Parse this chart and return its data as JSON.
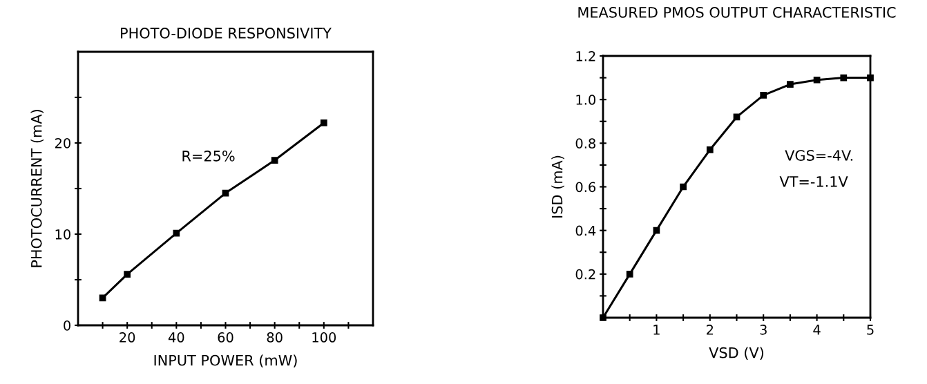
{
  "chart_data": [
    {
      "type": "line",
      "title": "PHOTO-DIODE RESPONSIVITY",
      "xlabel": "INPUT POWER (mW)",
      "ylabel": "PHOTOCURRENT (mA)",
      "x": [
        10,
        20,
        40,
        60,
        80,
        100
      ],
      "series": [
        {
          "color": "#000000",
          "values": [
            3.0,
            5.6,
            10.1,
            14.5,
            18.1,
            22.2
          ]
        }
      ],
      "xlim": [
        0,
        120
      ],
      "xticks": [
        {
          "value": 10,
          "label": null
        },
        20,
        {
          "value": 30,
          "label": null
        },
        40,
        {
          "value": 50,
          "label": null
        },
        60,
        {
          "value": 70,
          "label": null
        },
        80,
        {
          "value": 90,
          "label": null
        },
        100,
        {
          "value": 110,
          "label": null
        }
      ],
      "ylim": [
        0,
        30
      ],
      "yticks": [
        0,
        {
          "value": 5,
          "label": null
        },
        10,
        {
          "value": 15,
          "label": null
        },
        20,
        {
          "value": 25,
          "label": null
        }
      ],
      "annotations": [
        "R=25%"
      ],
      "marker": "square",
      "line_style": "solid",
      "grid": false
    },
    {
      "type": "line",
      "title": "MEASURED PMOS OUTPUT CHARACTERISTIC",
      "xlabel": "VSD (V)",
      "ylabel": "ISD (mA)",
      "x": [
        0,
        0.5,
        1,
        1.5,
        2,
        2.5,
        3,
        3.5,
        4,
        4.5,
        5
      ],
      "series": [
        {
          "color": "#000000",
          "values": [
            0,
            0.2,
            0.4,
            0.6,
            0.77,
            0.92,
            1.02,
            1.07,
            1.09,
            1.1,
            1.1
          ]
        }
      ],
      "xlim": [
        0,
        5
      ],
      "xticks": [
        {
          "value": 0.5,
          "label": null
        },
        1,
        {
          "value": 1.5,
          "label": null
        },
        2,
        {
          "value": 2.5,
          "label": null
        },
        3,
        {
          "value": 3.5,
          "label": null
        },
        4,
        {
          "value": 4.5,
          "label": null
        },
        5
      ],
      "ylim": [
        0,
        1.2
      ],
      "yticks": [
        {
          "value": 0.1,
          "label": null
        },
        0.2,
        {
          "value": 0.3,
          "label": null
        },
        0.4,
        {
          "value": 0.5,
          "label": null
        },
        0.6,
        {
          "value": 0.7,
          "label": null
        },
        0.8,
        {
          "value": 0.9,
          "label": null
        },
        {
          "value": 1.0,
          "label": "1.0"
        },
        {
          "value": 1.1,
          "label": null
        },
        1.2
      ],
      "annotations": [
        "VGS=-4V.",
        "VT=-1.1V"
      ],
      "marker": "square",
      "line_style": "solid",
      "grid": false
    }
  ]
}
